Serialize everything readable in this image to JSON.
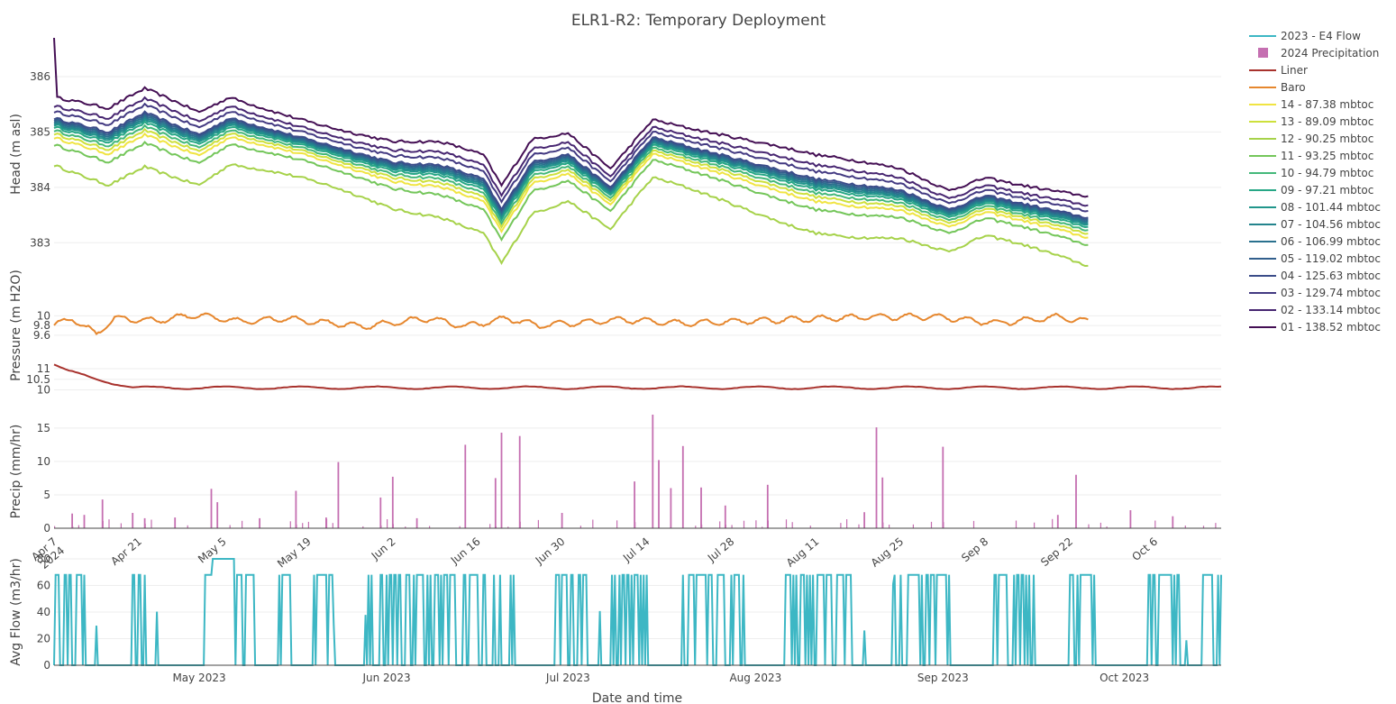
{
  "chart_data": {
    "type": "line",
    "title": "ELR1-R2: Temporary Deployment",
    "xlabel": "Date and time",
    "legend_placement": "right",
    "grid": true,
    "legend": [
      {
        "name": "2023 - E4 Flow",
        "color": "#3db7c4",
        "symbol": "line"
      },
      {
        "name": "2024 Precipitation",
        "color": "#c56fb1",
        "symbol": "square"
      },
      {
        "name": "Liner",
        "color": "#a8322d",
        "symbol": "line"
      },
      {
        "name": "Baro",
        "color": "#e6872e",
        "symbol": "line"
      },
      {
        "name": "14 - 87.38 mbtoc",
        "color": "#f0e442",
        "symbol": "line"
      },
      {
        "name": "13 - 89.09 mbtoc",
        "color": "#cde03c",
        "symbol": "line"
      },
      {
        "name": "12 - 90.25 mbtoc",
        "color": "#a6d24a",
        "symbol": "line"
      },
      {
        "name": "11 - 93.25 mbtoc",
        "color": "#74c65a",
        "symbol": "line"
      },
      {
        "name": "10 - 94.79 mbtoc",
        "color": "#44b87a",
        "symbol": "line"
      },
      {
        "name": "09 - 97.21 mbtoc",
        "color": "#27a786",
        "symbol": "line"
      },
      {
        "name": "08 - 101.44 mbtoc",
        "color": "#21968b",
        "symbol": "line"
      },
      {
        "name": "07 - 104.56 mbtoc",
        "color": "#24848d",
        "symbol": "line"
      },
      {
        "name": "06 - 106.99 mbtoc",
        "color": "#2a718e",
        "symbol": "line"
      },
      {
        "name": "05 - 119.02 mbtoc",
        "color": "#325f8d",
        "symbol": "line"
      },
      {
        "name": "04 - 125.63 mbtoc",
        "color": "#3b4c89",
        "symbol": "line"
      },
      {
        "name": "03 - 129.74 mbtoc",
        "color": "#433a82",
        "symbol": "line"
      },
      {
        "name": "02 - 133.14 mbtoc",
        "color": "#472671",
        "symbol": "line"
      },
      {
        "name": "01 - 138.52 mbtoc",
        "color": "#440f54",
        "symbol": "line"
      }
    ],
    "panels": {
      "head": {
        "ylabel": "Head (m asl)",
        "ylim": [
          382.5,
          386.7
        ],
        "yticks": [
          383,
          384,
          385,
          386
        ],
        "x_range": [
          "2024-04-07",
          "2024-10-17"
        ],
        "trend_knots": {
          "dates": [
            "2024-04-07",
            "2024-04-16",
            "2024-04-22",
            "2024-05-01",
            "2024-05-06",
            "2024-06-02",
            "2024-06-10",
            "2024-06-17",
            "2024-06-20",
            "2024-06-25",
            "2024-07-01",
            "2024-07-08",
            "2024-07-15",
            "2024-08-11",
            "2024-08-25",
            "2024-09-02",
            "2024-09-08",
            "2024-09-25"
          ],
          "ref": [
            385.25,
            385.0,
            385.35,
            384.95,
            385.25,
            384.45,
            384.4,
            384.15,
            383.6,
            384.45,
            384.6,
            384.0,
            384.9,
            384.15,
            383.95,
            383.6,
            383.85,
            383.45
          ]
        },
        "series_offsets": [
          {
            "name": "14 - 87.38 mbtoc",
            "offset": -0.35
          },
          {
            "name": "13 - 89.09 mbtoc",
            "offset": -0.28
          },
          {
            "name": "12 - 90.25 mbtoc",
            "offset": -0.85
          },
          {
            "name": "11 - 93.25 mbtoc",
            "offset": -0.48
          },
          {
            "name": "10 - 94.79 mbtoc",
            "offset": -0.22
          },
          {
            "name": "09 - 97.21 mbtoc",
            "offset": -0.16
          },
          {
            "name": "08 - 101.44 mbtoc",
            "offset": -0.12
          },
          {
            "name": "07 - 104.56 mbtoc",
            "offset": -0.09
          },
          {
            "name": "06 - 106.99 mbtoc",
            "offset": -0.06
          },
          {
            "name": "05 - 119.02 mbtoc",
            "offset": -0.03
          },
          {
            "name": "04 - 125.63 mbtoc",
            "offset": 0.0
          },
          {
            "name": "03 - 129.74 mbtoc",
            "offset": 0.12
          },
          {
            "name": "02 - 133.14 mbtoc",
            "offset": 0.22
          },
          {
            "name": "01 - 138.52 mbtoc",
            "offset": 0.38
          }
        ],
        "spike": {
          "date": "2024-04-07",
          "value": 386.7
        }
      },
      "pressure": {
        "ylabel": "Pressure (m H2O)",
        "baro": {
          "ylim": [
            9.45,
            10.1
          ],
          "yticks": [
            9.6,
            9.8,
            10
          ],
          "knots_dates": [
            "2024-04-07",
            "2024-04-10",
            "2024-04-14",
            "2024-04-17",
            "2024-04-24",
            "2024-04-30",
            "2024-05-08",
            "2024-05-15",
            "2024-05-28",
            "2024-06-08",
            "2024-06-14",
            "2024-06-21",
            "2024-06-26",
            "2024-07-10",
            "2024-07-20",
            "2024-08-20",
            "2024-08-31",
            "2024-09-10",
            "2024-09-20",
            "2024-09-25"
          ],
          "knots_values": [
            9.8,
            9.95,
            9.62,
            9.95,
            9.9,
            10.02,
            9.88,
            9.95,
            9.78,
            9.95,
            9.78,
            9.95,
            9.8,
            9.92,
            9.85,
            9.98,
            9.98,
            9.85,
            9.98,
            9.88
          ]
        },
        "liner": {
          "ylim": [
            9.85,
            11.3
          ],
          "yticks": [
            10,
            10.5,
            11
          ],
          "x_range": [
            "2024-04-07",
            "2024-10-17"
          ],
          "knots_dates": [
            "2024-04-07",
            "2024-04-09",
            "2024-04-15",
            "2024-04-20",
            "2024-10-17"
          ],
          "knots_values": [
            11.2,
            10.9,
            10.45,
            10.1,
            10.1
          ]
        }
      },
      "precip": {
        "ylabel": "Precip (mm/hr)",
        "ylim": [
          0,
          17
        ],
        "yticks": [
          0,
          5,
          10,
          15
        ],
        "x_range": [
          "2024-04-07",
          "2024-10-17"
        ],
        "xticks": [
          "Apr 7\n2024",
          "Apr 21",
          "May 5",
          "May 19",
          "Jun 2",
          "Jun 16",
          "Jun 30",
          "Jul 14",
          "Jul 28",
          "Aug 11",
          "Aug 25",
          "Sep 8",
          "Sep 22",
          "Oct 6"
        ],
        "bars": [
          {
            "date": "2024-04-10",
            "value": 2.2
          },
          {
            "date": "2024-04-12",
            "value": 2.0
          },
          {
            "date": "2024-04-15",
            "value": 4.3
          },
          {
            "date": "2024-04-20",
            "value": 2.3
          },
          {
            "date": "2024-04-22",
            "value": 1.5
          },
          {
            "date": "2024-04-27",
            "value": 1.6
          },
          {
            "date": "2024-05-03",
            "value": 5.9
          },
          {
            "date": "2024-05-04",
            "value": 3.9
          },
          {
            "date": "2024-05-11",
            "value": 1.5
          },
          {
            "date": "2024-05-17",
            "value": 5.6
          },
          {
            "date": "2024-05-22",
            "value": 1.6
          },
          {
            "date": "2024-05-24",
            "value": 9.9
          },
          {
            "date": "2024-05-31",
            "value": 4.6
          },
          {
            "date": "2024-06-02",
            "value": 7.7
          },
          {
            "date": "2024-06-06",
            "value": 1.5
          },
          {
            "date": "2024-06-14",
            "value": 12.5
          },
          {
            "date": "2024-06-19",
            "value": 7.5
          },
          {
            "date": "2024-06-20",
            "value": 14.3
          },
          {
            "date": "2024-06-23",
            "value": 13.8
          },
          {
            "date": "2024-06-30",
            "value": 2.3
          },
          {
            "date": "2024-07-12",
            "value": 7.0
          },
          {
            "date": "2024-07-15",
            "value": 17.0
          },
          {
            "date": "2024-07-16",
            "value": 10.2
          },
          {
            "date": "2024-07-18",
            "value": 6.0
          },
          {
            "date": "2024-07-20",
            "value": 12.3
          },
          {
            "date": "2024-07-23",
            "value": 6.1
          },
          {
            "date": "2024-07-27",
            "value": 3.4
          },
          {
            "date": "2024-08-03",
            "value": 6.5
          },
          {
            "date": "2024-08-19",
            "value": 2.4
          },
          {
            "date": "2024-08-21",
            "value": 15.1
          },
          {
            "date": "2024-08-22",
            "value": 7.6
          },
          {
            "date": "2024-09-01",
            "value": 12.2
          },
          {
            "date": "2024-09-20",
            "value": 2.0
          },
          {
            "date": "2024-09-23",
            "value": 8.0
          },
          {
            "date": "2024-10-02",
            "value": 2.7
          },
          {
            "date": "2024-10-09",
            "value": 1.8
          }
        ]
      },
      "flow": {
        "ylabel": "Avg Flow (m3/hr)",
        "ylim": [
          0,
          80
        ],
        "yticks": [
          0,
          20,
          40,
          60,
          80
        ],
        "x_range": [
          "2023-04-07",
          "2023-10-17"
        ],
        "xticks": [
          "May 2023",
          "Jun 2023",
          "Jul 2023",
          "Aug 2023",
          "Sep 2023",
          "Oct 2023"
        ],
        "on_level": 68,
        "on_periods": [
          [
            "2023-04-07",
            "2023-04-12"
          ],
          [
            "2023-04-20",
            "2023-04-22"
          ],
          [
            "2023-05-02",
            "2023-05-10"
          ],
          [
            "2023-05-14",
            "2023-05-16"
          ],
          [
            "2023-05-20",
            "2023-05-23"
          ],
          [
            "2023-05-29",
            "2023-06-22"
          ],
          [
            "2023-06-29",
            "2023-07-04"
          ],
          [
            "2023-07-08",
            "2023-07-14"
          ],
          [
            "2023-07-20",
            "2023-07-30"
          ],
          [
            "2023-08-06",
            "2023-08-17"
          ],
          [
            "2023-08-24",
            "2023-09-02"
          ],
          [
            "2023-09-09",
            "2023-09-16"
          ],
          [
            "2023-09-22",
            "2023-09-26"
          ],
          [
            "2023-10-05",
            "2023-10-10"
          ],
          [
            "2023-10-14",
            "2023-10-17"
          ]
        ],
        "peak": {
          "date": "2023-05-05",
          "value": 80
        }
      }
    }
  }
}
